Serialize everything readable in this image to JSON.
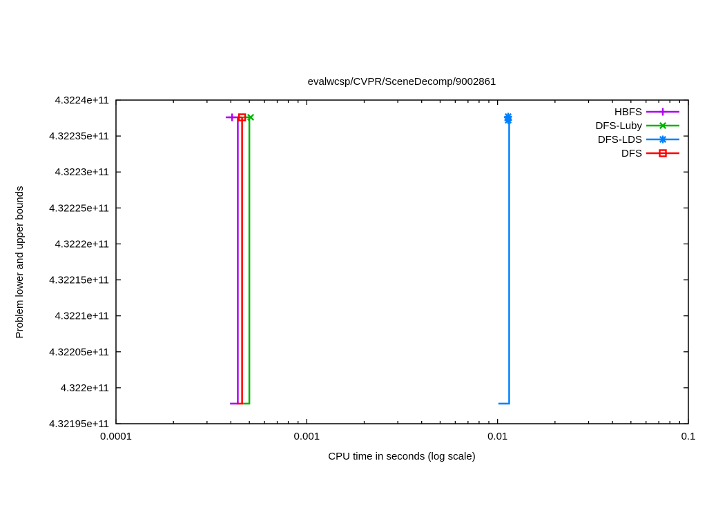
{
  "chart": {
    "title": "evalwcsp/CVPR/SceneDecomp/9002861",
    "xlabel": "CPU time in seconds (log scale)",
    "ylabel": "Problem lower and upper bounds"
  },
  "chart_data": {
    "type": "line",
    "title": "evalwcsp/CVPR/SceneDecomp/9002861",
    "xlabel": "CPU time in seconds (log scale)",
    "ylabel": "Problem lower and upper bounds",
    "x_scale": "log",
    "grid": false,
    "xlim": [
      0.0001,
      0.1
    ],
    "ylim": [
      432195000000,
      432240000000
    ],
    "x_ticks": [
      {
        "label": "0.0001",
        "value": 0.0001
      },
      {
        "label": "0.001",
        "value": 0.001
      },
      {
        "label": "0.01",
        "value": 0.01
      },
      {
        "label": "0.1",
        "value": 0.1
      }
    ],
    "y_ticks": [
      {
        "label": "4.32195e+11",
        "value": 432195000000
      },
      {
        "label": "4.322e+11",
        "value": 432200000000
      },
      {
        "label": "4.32205e+11",
        "value": 432205000000
      },
      {
        "label": "4.3221e+11",
        "value": 432210000000
      },
      {
        "label": "4.32215e+11",
        "value": 432215000000
      },
      {
        "label": "4.3222e+11",
        "value": 432220000000
      },
      {
        "label": "4.32225e+11",
        "value": 432225000000
      },
      {
        "label": "4.3223e+11",
        "value": 432230000000
      },
      {
        "label": "4.32235e+11",
        "value": 432235000000
      },
      {
        "label": "4.3224e+11",
        "value": 432240000000
      }
    ],
    "legend_position": "inside top-right",
    "series": [
      {
        "name": "HBFS",
        "color": "#b000f0",
        "marker": "plus",
        "upper_bound": 432237600000,
        "lower_bound": 432197800000,
        "ub_t_start": 0.000376,
        "lb_t_start": 0.000396,
        "t_end": 0.000435,
        "markers": [
          {
            "t": 0.000406,
            "v": 432237600000
          }
        ]
      },
      {
        "name": "DFS-Luby",
        "color": "#00b400",
        "marker": "cross",
        "upper_bound": 432237600000,
        "lower_bound": 432197800000,
        "ub_t_start": 0.00046,
        "lb_t_start": 0.000461,
        "t_end": 0.0005,
        "markers": [
          {
            "t": 0.000508,
            "v": 432237600000
          }
        ]
      },
      {
        "name": "DFS-LDS",
        "color": "#0080ff",
        "marker": "star",
        "upper_bound": 432237600000,
        "lower_bound": 432197800000,
        "ub_t_start": 0.0108,
        "lb_t_start": 0.0101,
        "t_end": 0.0115,
        "markers": [
          {
            "t": 0.01137,
            "v": 432237700000
          },
          {
            "t": 0.01137,
            "v": 432237200000
          }
        ]
      },
      {
        "name": "DFS",
        "color": "#ff0000",
        "marker": "square-open",
        "upper_bound": 432237600000,
        "lower_bound": 432197800000,
        "ub_t_start": 0.00043,
        "lb_t_start": 0.00043,
        "t_end": 0.000458,
        "markers": [
          {
            "t": 0.000458,
            "v": 432237600000
          }
        ]
      }
    ]
  }
}
